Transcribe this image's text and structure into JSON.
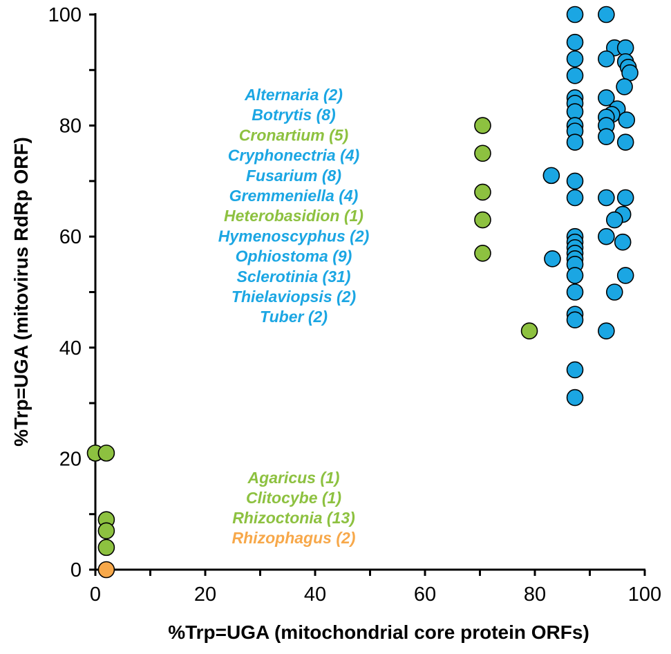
{
  "chart_data": {
    "type": "scatter",
    "xlabel": "%Trp=UGA (mitochondrial core protein ORFs)",
    "ylabel": "%Trp=UGA (mitovirus RdRp ORF)",
    "xlim": [
      0,
      100
    ],
    "ylim": [
      0,
      100
    ],
    "x_ticks": [
      "0",
      "20",
      "40",
      "60",
      "80",
      "100"
    ],
    "y_ticks": [
      "0",
      "20",
      "40",
      "60",
      "80",
      "100"
    ],
    "grid": false,
    "colors": {
      "blue": "#1ba6e3",
      "green": "#8dc140",
      "orange": "#f7a84a"
    },
    "series": [
      {
        "color": "blue",
        "points": [
          [
            87.3,
            100
          ],
          [
            93,
            100
          ],
          [
            87.3,
            95
          ],
          [
            94.5,
            94
          ],
          [
            96.5,
            94
          ],
          [
            87.3,
            92
          ],
          [
            93,
            92
          ],
          [
            96.5,
            91.5
          ],
          [
            97,
            90.5
          ],
          [
            97.3,
            89.5
          ],
          [
            87.3,
            89
          ],
          [
            96.3,
            87
          ],
          [
            87.3,
            85
          ],
          [
            93,
            85
          ],
          [
            87.3,
            84
          ],
          [
            87.3,
            82.5
          ],
          [
            95,
            83
          ],
          [
            94,
            82
          ],
          [
            93,
            81.5
          ],
          [
            96.7,
            81
          ],
          [
            93,
            80
          ],
          [
            87.3,
            80
          ],
          [
            87.3,
            79
          ],
          [
            93,
            78
          ],
          [
            87.3,
            77
          ],
          [
            96.5,
            77
          ],
          [
            83,
            71
          ],
          [
            87.3,
            70
          ],
          [
            87.3,
            67
          ],
          [
            93,
            67
          ],
          [
            96.5,
            67
          ],
          [
            96,
            64
          ],
          [
            94.5,
            63
          ],
          [
            87.3,
            60
          ],
          [
            93,
            60
          ],
          [
            87.3,
            59
          ],
          [
            96,
            59
          ],
          [
            87.3,
            58
          ],
          [
            87.3,
            57
          ],
          [
            87.3,
            56
          ],
          [
            83.2,
            56
          ],
          [
            87.3,
            55
          ],
          [
            87.3,
            53
          ],
          [
            96.5,
            53
          ],
          [
            87.3,
            50
          ],
          [
            94.5,
            50
          ],
          [
            87.3,
            46
          ],
          [
            87.3,
            45
          ],
          [
            93,
            43
          ],
          [
            87.3,
            36
          ],
          [
            87.3,
            31
          ]
        ]
      },
      {
        "color": "green",
        "points": [
          [
            70.5,
            80
          ],
          [
            70.5,
            75
          ],
          [
            70.5,
            68
          ],
          [
            70.5,
            63
          ],
          [
            70.5,
            57
          ],
          [
            79,
            43
          ],
          [
            0,
            21
          ],
          [
            2,
            21
          ],
          [
            2,
            9
          ],
          [
            2,
            7
          ],
          [
            2,
            4
          ]
        ]
      },
      {
        "color": "orange",
        "points": [
          [
            2,
            0
          ]
        ]
      }
    ],
    "annotations_upper": [
      {
        "text": "Alternaria (2)",
        "color": "blue"
      },
      {
        "text": "Botrytis (8)",
        "color": "blue"
      },
      {
        "text": "Cronartium (5)",
        "color": "green"
      },
      {
        "text": "Cryphonectria (4)",
        "color": "blue"
      },
      {
        "text": "Fusarium (8)",
        "color": "blue"
      },
      {
        "text": "Gremmeniella (4)",
        "color": "blue"
      },
      {
        "text": "Heterobasidion (1)",
        "color": "green"
      },
      {
        "text": "Hymenoscyphus (2)",
        "color": "blue"
      },
      {
        "text": "Ophiostoma (9)",
        "color": "blue"
      },
      {
        "text": "Sclerotinia (31)",
        "color": "blue"
      },
      {
        "text": "Thielaviopsis (2)",
        "color": "blue"
      },
      {
        "text": "Tuber (2)",
        "color": "blue"
      }
    ],
    "annotations_lower": [
      {
        "text": "Agaricus (1)",
        "color": "green"
      },
      {
        "text": "Clitocybe (1)",
        "color": "green"
      },
      {
        "text": "Rhizoctonia (13)",
        "color": "green"
      },
      {
        "text": "Rhizophagus (2)",
        "color": "orange"
      }
    ]
  }
}
